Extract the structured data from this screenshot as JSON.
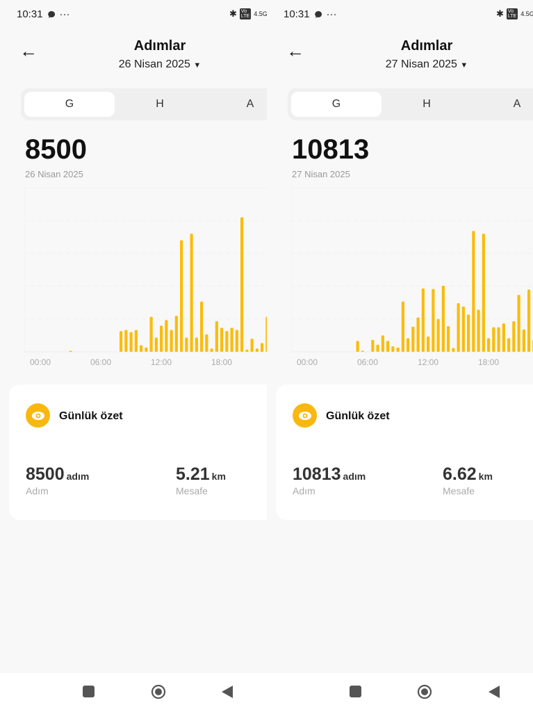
{
  "colors": {
    "accent": "#f8b80f",
    "bar": "#fbbc0a"
  },
  "panels": [
    {
      "status": {
        "time": "10:31",
        "dots": "···",
        "network": "4.5G"
      },
      "header": {
        "title": "Adımlar",
        "date": "26 Nisan 2025"
      },
      "tabs": [
        {
          "label": "G",
          "active": true
        },
        {
          "label": "H"
        },
        {
          "label": "A"
        }
      ],
      "total": "8500",
      "total_date": "26 Nisan 2025",
      "summary": {
        "title": "Günlük özet",
        "steps_value": "8500",
        "steps_unit": "adım",
        "steps_label": "Adım",
        "distance_value": "5.21",
        "distance_unit": "km",
        "distance_label": "Mesafe"
      }
    },
    {
      "status": {
        "time": "10:31",
        "dots": "···",
        "network": "4.5G"
      },
      "header": {
        "title": "Adımlar",
        "date": "27 Nisan 2025"
      },
      "tabs": [
        {
          "label": "G",
          "active": true
        },
        {
          "label": "H"
        },
        {
          "label": "A"
        }
      ],
      "total": "10813",
      "total_date": "27 Nisan 2025",
      "summary": {
        "title": "Günlük özet",
        "steps_value": "10813",
        "steps_unit": "adım",
        "steps_label": "Adım",
        "distance_value": "6.62",
        "distance_unit": "km",
        "distance_label": "Mesafe"
      }
    }
  ],
  "chart_data": [
    {
      "type": "bar",
      "x_ticks": [
        "00:00",
        "06:00",
        "12:00",
        "18:00",
        "00:00"
      ],
      "ylim": [
        0,
        1500
      ],
      "grid": true,
      "bin": "30 min",
      "x": [
        "03:00",
        "08:00",
        "08:30",
        "09:00",
        "09:30",
        "10:00",
        "10:30",
        "11:00",
        "11:30",
        "12:00",
        "12:30",
        "13:00",
        "13:30",
        "14:00",
        "14:30",
        "15:00",
        "15:30",
        "16:00",
        "16:30",
        "17:00",
        "17:30",
        "18:00",
        "18:30",
        "19:00",
        "19:30",
        "20:00",
        "20:30",
        "21:00",
        "21:30",
        "22:00",
        "22:30"
      ],
      "values": [
        5,
        190,
        200,
        180,
        200,
        60,
        40,
        320,
        130,
        240,
        290,
        200,
        330,
        1020,
        130,
        1080,
        130,
        460,
        160,
        30,
        280,
        220,
        190,
        220,
        200,
        1230,
        20,
        120,
        30,
        80,
        320
      ]
    },
    {
      "type": "bar",
      "x_ticks": [
        "00:00",
        "06:00",
        "12:00",
        "18:00",
        "00:00"
      ],
      "ylim": [
        0,
        1500
      ],
      "grid": true,
      "bin": "30 min",
      "x": [
        "05:00",
        "05:30",
        "06:30",
        "07:00",
        "07:30",
        "08:00",
        "08:30",
        "09:00",
        "09:30",
        "10:00",
        "10:30",
        "11:00",
        "11:30",
        "12:00",
        "12:30",
        "13:00",
        "13:30",
        "14:00",
        "14:30",
        "15:00",
        "15:30",
        "16:00",
        "16:30",
        "17:00",
        "17:30",
        "18:00",
        "18:30",
        "19:00",
        "19:30",
        "20:00",
        "20:30",
        "21:00",
        "21:30",
        "22:00",
        "22:30"
      ],
      "values": [
        100,
        5,
        110,
        65,
        150,
        100,
        50,
        40,
        460,
        125,
        230,
        315,
        580,
        140,
        575,
        300,
        605,
        235,
        35,
        445,
        415,
        340,
        1105,
        385,
        1080,
        125,
        225,
        225,
        260,
        125,
        280,
        520,
        205,
        570,
        110
      ]
    }
  ]
}
